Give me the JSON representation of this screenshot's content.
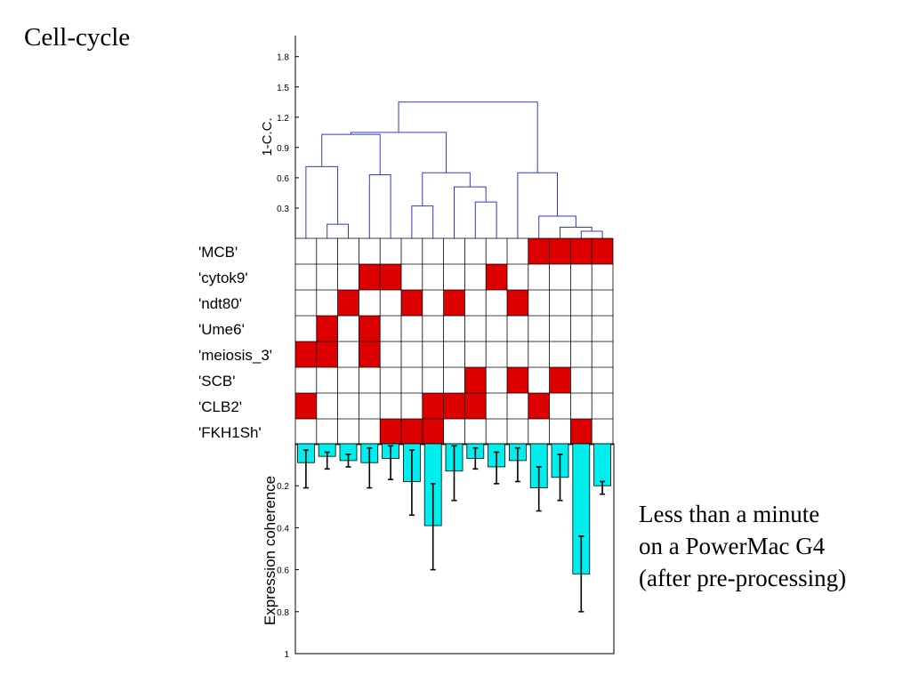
{
  "slide": {
    "title": "Cell-cycle",
    "caption_lines": [
      "Less than a minute",
      "on a PowerMac G4",
      "(after pre-processing)"
    ]
  },
  "colors": {
    "dendrogram": "#2b3bcc",
    "motif_present": "#dd0000",
    "bars": "#00eeee",
    "grid": "#000000"
  },
  "chart_data": [
    {
      "type": "dendrogram",
      "ylabel": "1-C.C.",
      "ylim": [
        0,
        2.0
      ],
      "yticks": [
        0.3,
        0.6,
        0.9,
        1.2,
        1.5,
        1.8
      ],
      "ytick_labels": [
        "0.3",
        "0.6",
        "0.9",
        "1.2",
        "1.5",
        "1.8"
      ],
      "leaf_count": 15,
      "merges": [
        {
          "left": 1,
          "right": 2,
          "height": 0.14
        },
        {
          "left": 0,
          "right": "m0",
          "height": 0.71
        },
        {
          "left": 3,
          "right": 4,
          "height": 0.63
        },
        {
          "left": "m1",
          "right": "m2",
          "height": 1.03
        },
        {
          "left": 5,
          "right": 6,
          "height": 0.32
        },
        {
          "left": 8,
          "right": 9,
          "height": 0.36
        },
        {
          "left": 7,
          "right": "m5",
          "height": 0.51
        },
        {
          "left": "m4",
          "right": "m6",
          "height": 0.65
        },
        {
          "left": "m3",
          "right": "m7",
          "height": 1.05
        },
        {
          "left": 13,
          "right": 14,
          "height": 0.07
        },
        {
          "left": 12,
          "right": "m9",
          "height": 0.11
        },
        {
          "left": 11,
          "right": "m10",
          "height": 0.22
        },
        {
          "left": 10,
          "right": "m11",
          "height": 0.65
        },
        {
          "left": "m8",
          "right": "m12",
          "height": 1.35
        }
      ]
    },
    {
      "type": "heatmap",
      "rows": [
        "'MCB'",
        "'cytok9'",
        "'ndt80'",
        "'Ume6'",
        "'meiosis_3'",
        "'SCB'",
        "'CLB2'",
        "'FKH1Sh'"
      ],
      "columns": 15,
      "present": [
        [
          11,
          12,
          13,
          14
        ],
        [
          3,
          4,
          9
        ],
        [
          2,
          5,
          7,
          10
        ],
        [
          1,
          3
        ],
        [
          0,
          1,
          3
        ],
        [
          8,
          10,
          12
        ],
        [
          0,
          6,
          7,
          8,
          11
        ],
        [
          4,
          5,
          6,
          13
        ]
      ]
    },
    {
      "type": "bar",
      "ylabel": "Expression coherence",
      "ylim": [
        0,
        1
      ],
      "yaxis_inverted": true,
      "yticks": [
        0.2,
        0.4,
        0.6,
        0.8,
        1
      ],
      "ytick_labels": [
        "0.2",
        "0.4",
        "0.6",
        "0.8",
        "1"
      ],
      "values": [
        0.09,
        0.06,
        0.08,
        0.09,
        0.07,
        0.18,
        0.39,
        0.13,
        0.07,
        0.11,
        0.08,
        0.21,
        0.16,
        0.62,
        0.2
      ],
      "errors": [
        [
          0.03,
          0.21
        ],
        [
          0.04,
          0.12
        ],
        [
          0.05,
          0.11
        ],
        [
          0.02,
          0.21
        ],
        [
          0.01,
          0.17
        ],
        [
          0.03,
          0.34
        ],
        [
          0.19,
          0.6
        ],
        [
          0.01,
          0.27
        ],
        [
          0.02,
          0.12
        ],
        [
          0.04,
          0.19
        ],
        [
          0.02,
          0.18
        ],
        [
          0.11,
          0.32
        ],
        [
          0.05,
          0.27
        ],
        [
          0.44,
          0.8
        ],
        [
          0.18,
          0.24
        ]
      ]
    }
  ]
}
